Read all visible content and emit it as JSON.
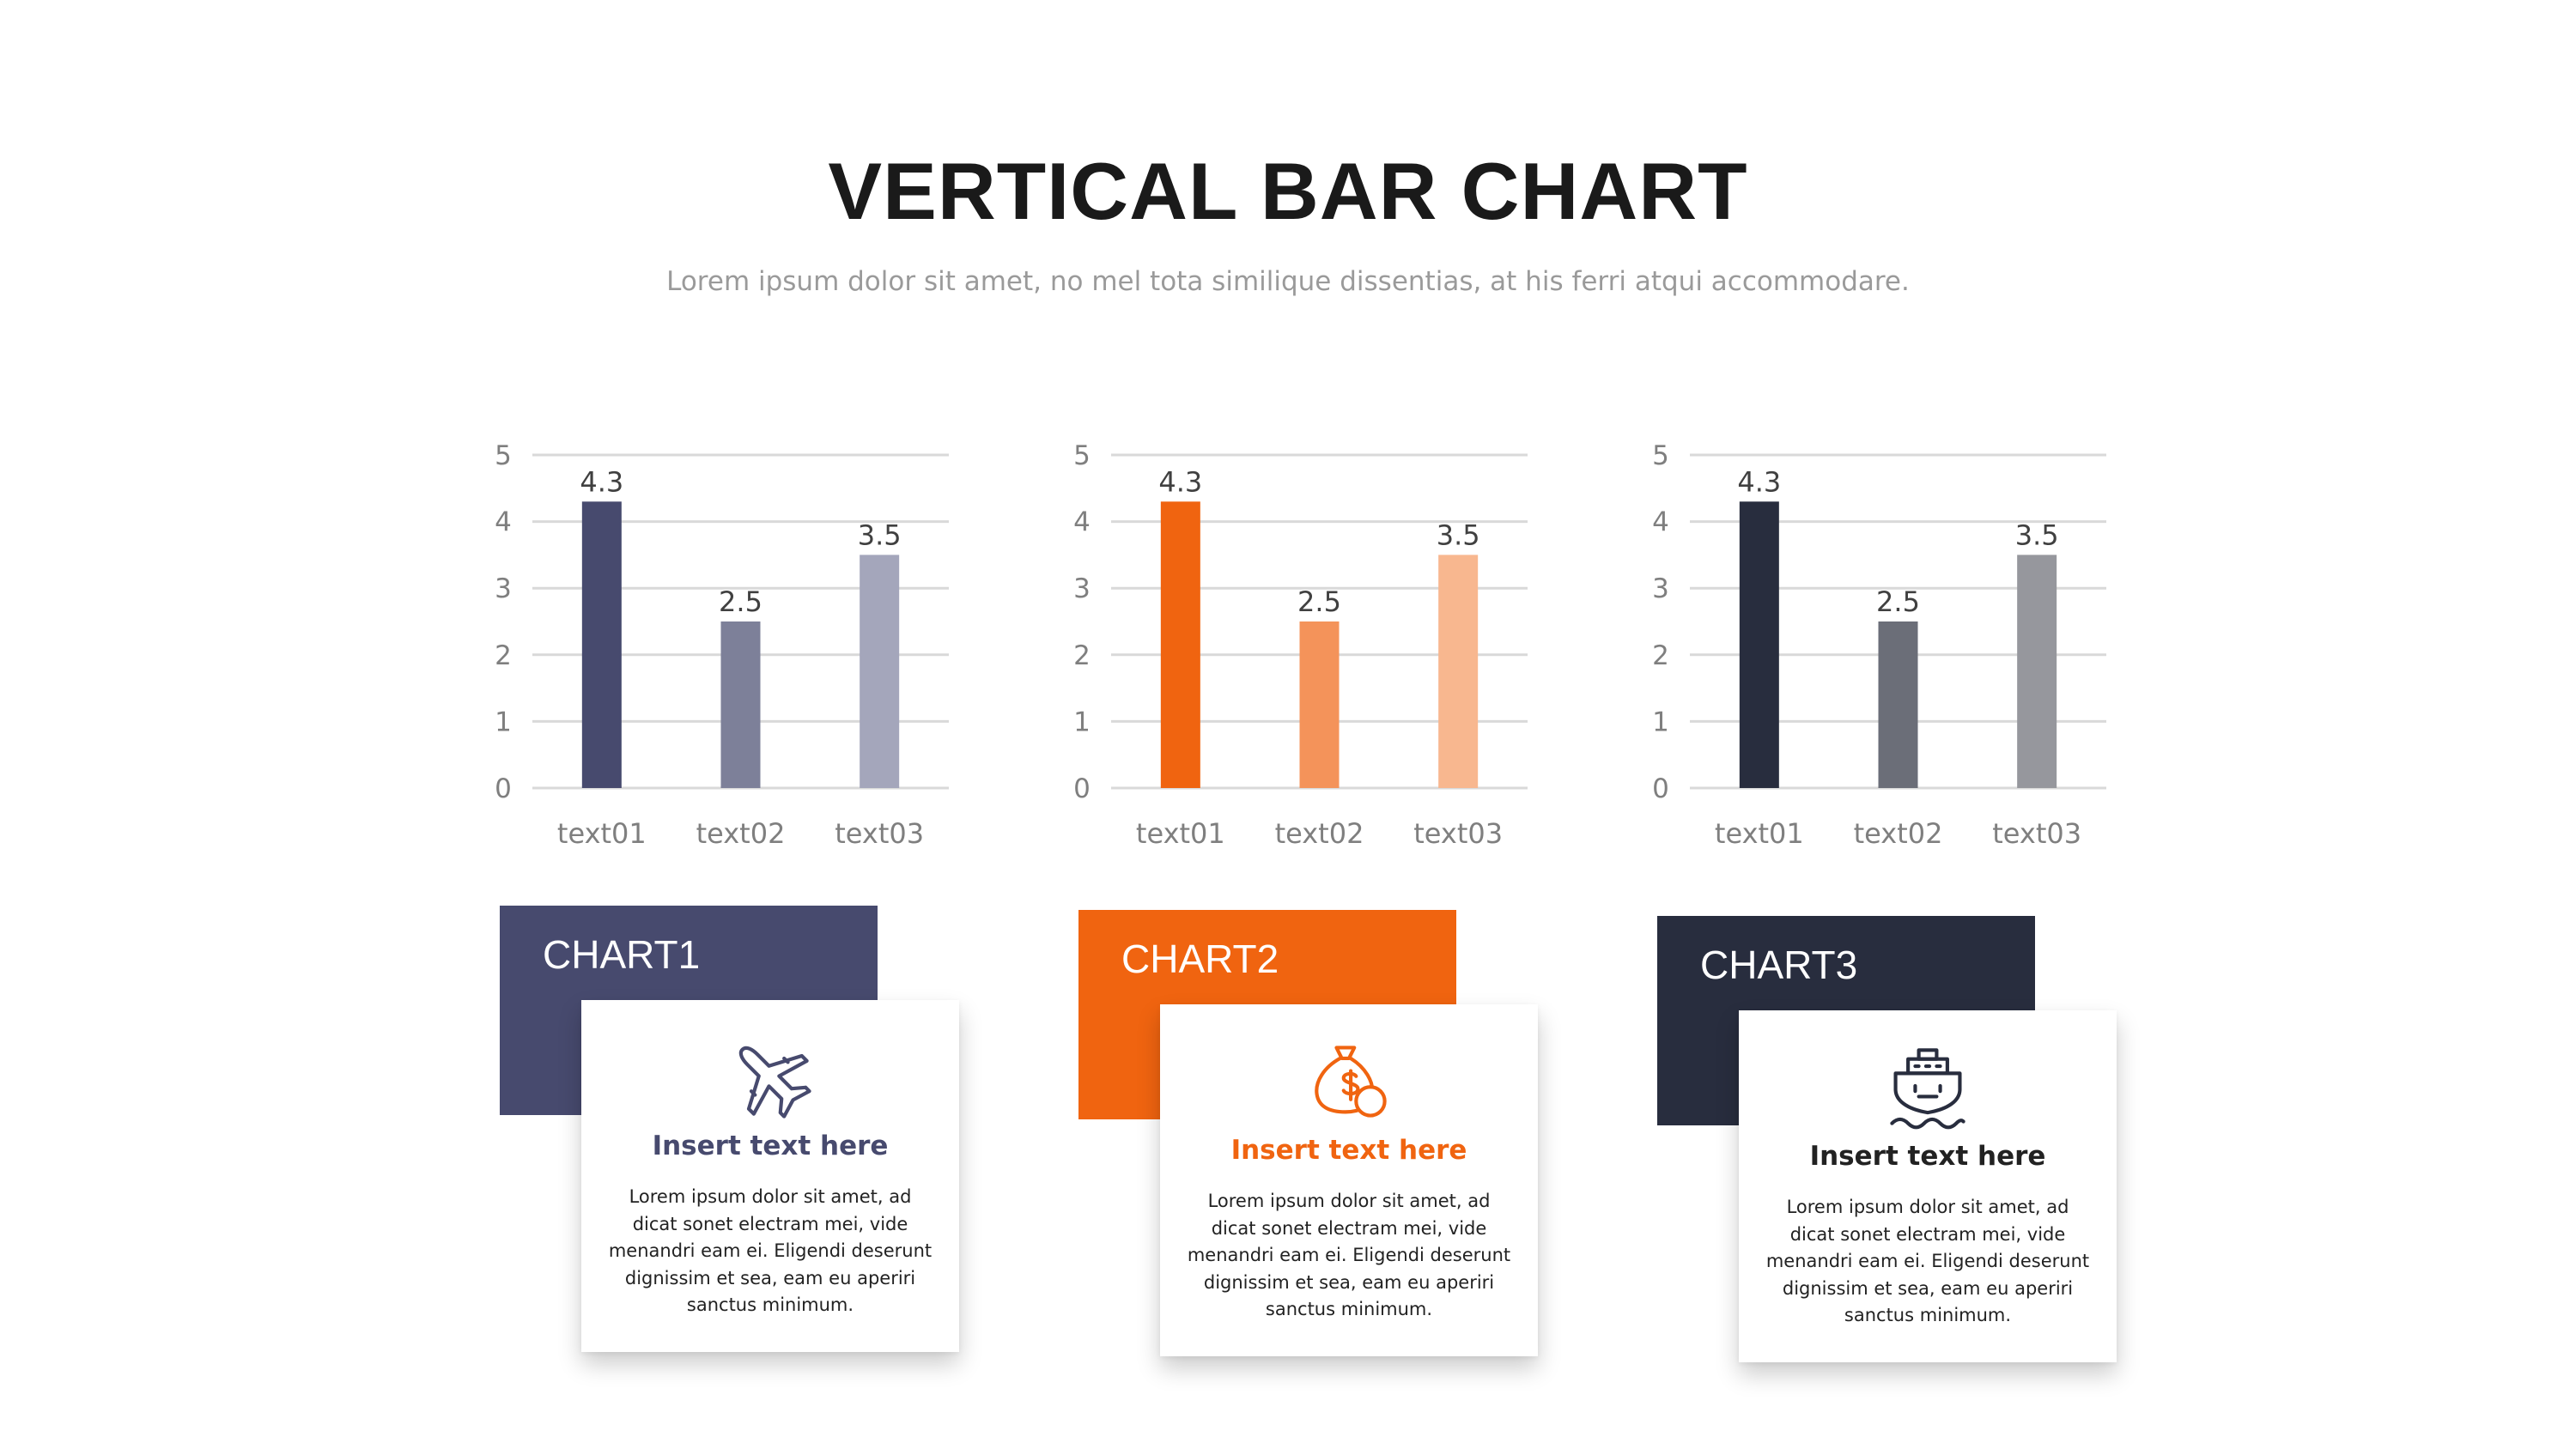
{
  "header": {
    "title": "VERTICAL BAR CHART",
    "subtitle": "Lorem ipsum dolor sit amet, no mel tota similique dissentias, at his ferri atqui accommodare."
  },
  "chart_data": [
    {
      "type": "bar",
      "categories": [
        "text01",
        "text02",
        "text03"
      ],
      "values": [
        4.3,
        2.5,
        3.5
      ],
      "data_labels": [
        "4.3",
        "2.5",
        "3.5"
      ],
      "ylim": [
        0,
        5
      ],
      "yticks": [
        "0",
        "1",
        "2",
        "3",
        "4",
        "5"
      ],
      "grid": true,
      "bar_colors": [
        "#474a6e",
        "#7d8099",
        "#a4a6bb"
      ]
    },
    {
      "type": "bar",
      "categories": [
        "text01",
        "text02",
        "text03"
      ],
      "values": [
        4.3,
        2.5,
        3.5
      ],
      "data_labels": [
        "4.3",
        "2.5",
        "3.5"
      ],
      "ylim": [
        0,
        5
      ],
      "yticks": [
        "0",
        "1",
        "2",
        "3",
        "4",
        "5"
      ],
      "grid": true,
      "bar_colors": [
        "#f06410",
        "#f4935a",
        "#f8b78f"
      ]
    },
    {
      "type": "bar",
      "categories": [
        "text01",
        "text02",
        "text03"
      ],
      "values": [
        4.3,
        2.5,
        3.5
      ],
      "data_labels": [
        "4.3",
        "2.5",
        "3.5"
      ],
      "ylim": [
        0,
        5
      ],
      "yticks": [
        "0",
        "1",
        "2",
        "3",
        "4",
        "5"
      ],
      "grid": true,
      "bar_colors": [
        "#282d3e",
        "#6b6e78",
        "#96979d"
      ]
    }
  ],
  "cards": [
    {
      "label": "CHART1",
      "color": "#474a6e",
      "title_color": "#474a6e",
      "icon": "airplane-icon",
      "title": "Insert text here",
      "body": "Lorem ipsum dolor sit amet, ad dicat sonet electram mei, vide menandri eam ei. Eligendi deserunt dignissim et sea, eam eu aperiri sanctus minimum."
    },
    {
      "label": "CHART2",
      "color": "#f06410",
      "title_color": "#f06410",
      "icon": "money-bag-icon",
      "title": "Insert text here",
      "body": "Lorem ipsum dolor sit amet, ad dicat sonet electram mei, vide menandri eam ei. Eligendi deserunt dignissim et sea, eam eu aperiri sanctus minimum."
    },
    {
      "label": "CHART3",
      "color": "#282d3e",
      "title_color": "#222222",
      "icon": "ship-icon",
      "title": "Insert text here",
      "body": "Lorem ipsum dolor sit amet, ad dicat sonet electram mei, vide menandri eam ei. Eligendi deserunt dignissim et sea, eam eu aperiri sanctus minimum."
    }
  ]
}
